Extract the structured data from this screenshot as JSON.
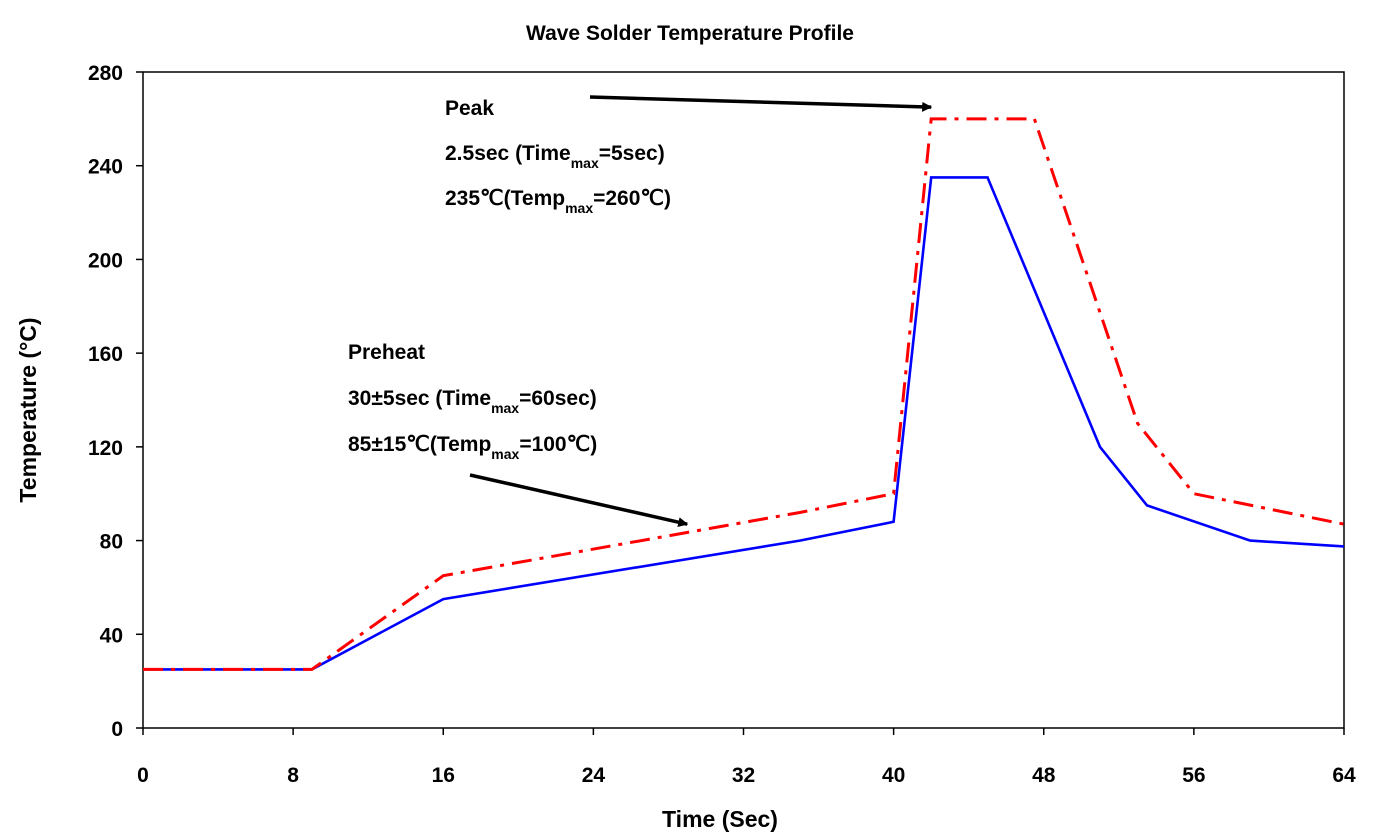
{
  "chart_data": {
    "type": "line",
    "title": "Wave Solder Temperature Profile",
    "xlabel": "Time (Sec)",
    "ylabel": "Temperature (°C)",
    "xlim": [
      0,
      64
    ],
    "ylim": [
      0,
      280
    ],
    "x_ticks": [
      "0",
      "8",
      "16",
      "24",
      "32",
      "40",
      "48",
      "56",
      "64"
    ],
    "y_ticks": [
      "0",
      "40",
      "80",
      "120",
      "160",
      "200",
      "240",
      "280"
    ],
    "grid": false,
    "legend": "none",
    "series": [
      {
        "color": "#0000ff",
        "style": "solid",
        "x": [
          0,
          9,
          16,
          35,
          40,
          42,
          45,
          51,
          53.5,
          59,
          64
        ],
        "y": [
          25,
          25,
          55,
          80,
          88,
          235,
          235,
          120,
          95,
          80,
          77.5
        ]
      },
      {
        "color": "#ff0000",
        "style": "dash-dot",
        "x": [
          0,
          9,
          16,
          35,
          40,
          42,
          47.5,
          53,
          56,
          64
        ],
        "y": [
          25,
          25,
          65,
          92,
          100,
          260,
          260,
          130,
          100,
          87
        ]
      }
    ],
    "annotations": {
      "peak": {
        "lines": [
          [
            "Peak"
          ],
          [
            "2.5sec (Time",
            "max",
            "=5sec)"
          ],
          [
            "235℃(Temp",
            "max",
            "=260℃)"
          ]
        ],
        "arrow_target": {
          "x": 42,
          "y": 265
        }
      },
      "preheat": {
        "lines": [
          [
            "Preheat"
          ],
          [
            "30±5sec (Time",
            "max",
            "=60sec)"
          ],
          [
            "85±15℃(Temp",
            "max",
            "=100℃)"
          ]
        ],
        "arrow_target": {
          "x": 29,
          "y": 87
        }
      }
    }
  }
}
